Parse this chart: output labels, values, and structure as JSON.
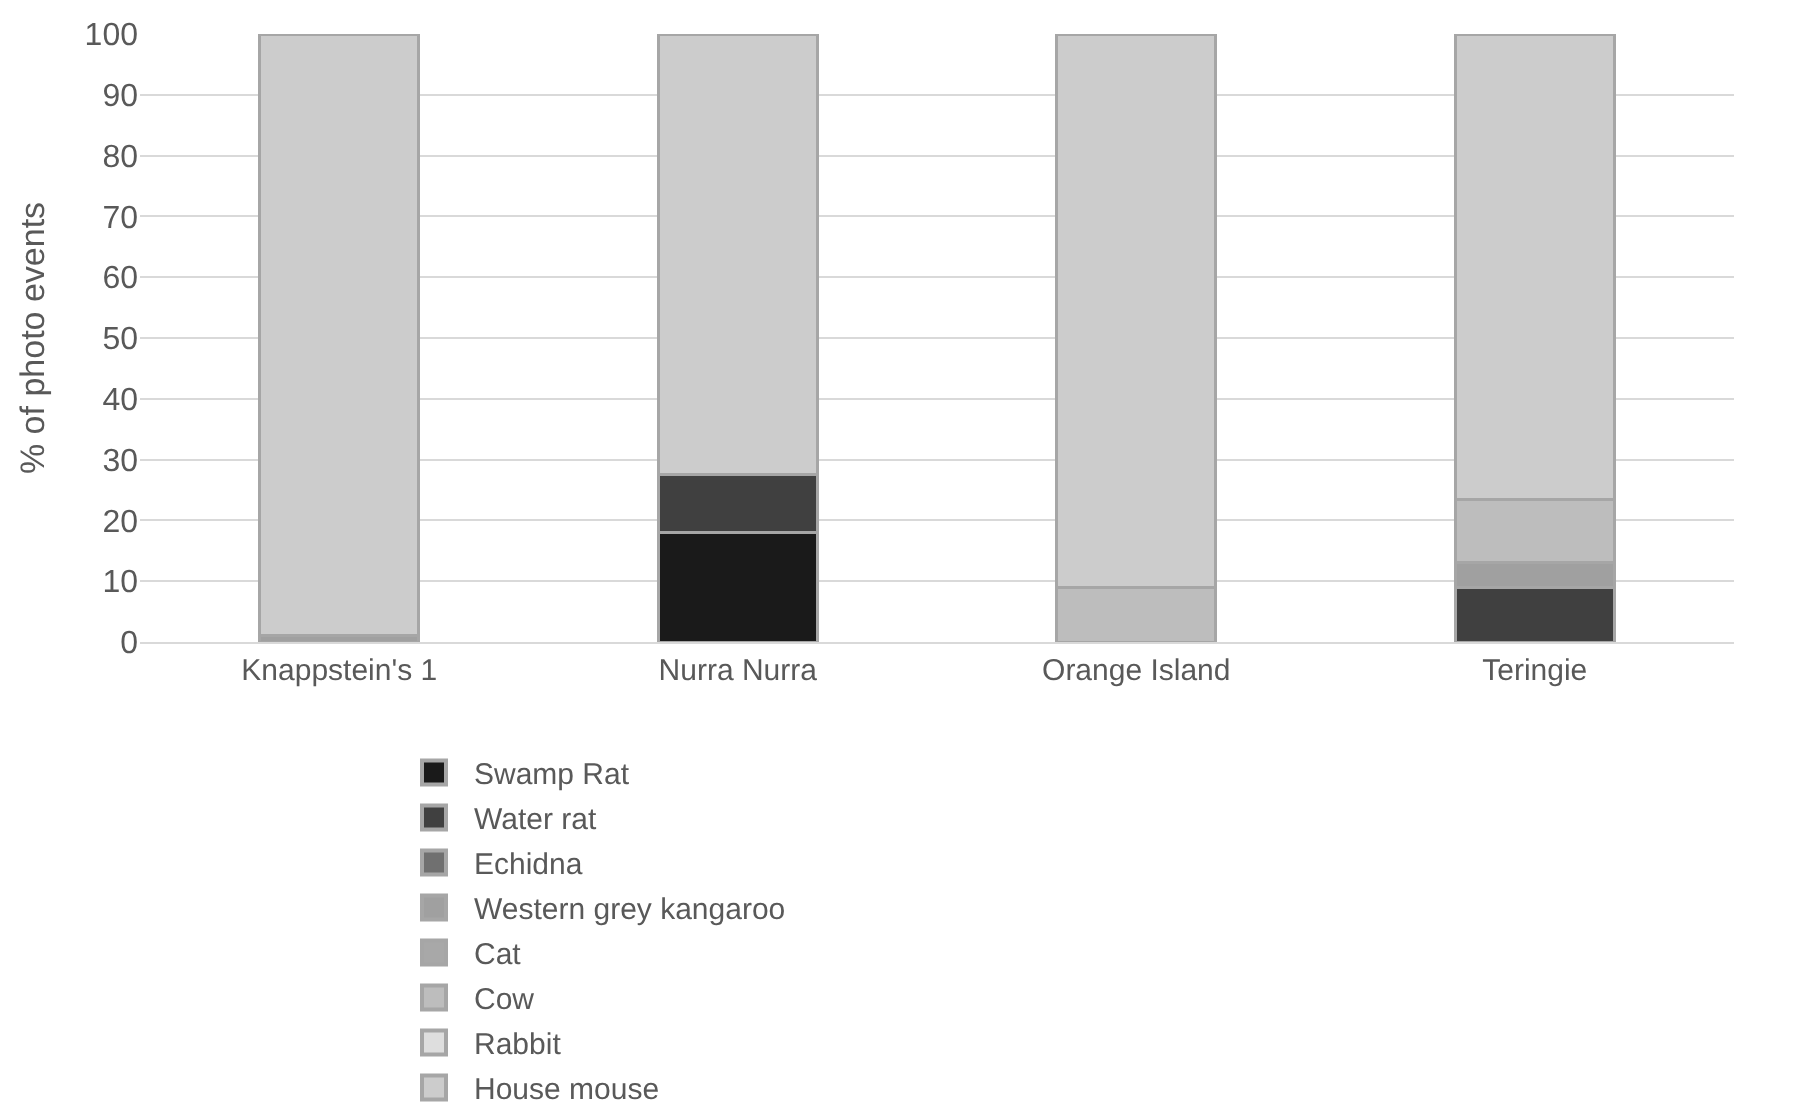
{
  "chart_data": {
    "type": "bar",
    "stacked": true,
    "ylabel": "% of photo events",
    "categories": [
      "Knappstein's 1",
      "Nurra Nurra",
      "Orange Island",
      "Teringie"
    ],
    "series": [
      {
        "name": "Swamp Rat",
        "color": "#1a1a1a",
        "values": [
          0,
          18,
          0,
          0
        ]
      },
      {
        "name": "Water rat",
        "color": "#404040",
        "values": [
          0,
          9.5,
          0,
          9
        ]
      },
      {
        "name": "Echidna",
        "color": "#707070",
        "values": [
          0,
          0,
          0,
          0
        ]
      },
      {
        "name": "Western grey kangaroo",
        "color": "#a0a0a0",
        "values": [
          1,
          0,
          0,
          4
        ]
      },
      {
        "name": "Cat",
        "color": "#a8a8a8",
        "values": [
          0,
          0,
          0,
          0
        ]
      },
      {
        "name": "Cow",
        "color": "#bdbdbd",
        "values": [
          0,
          0,
          9,
          10.5
        ]
      },
      {
        "name": "Rabbit",
        "color": "#dedede",
        "values": [
          0,
          0,
          0,
          0
        ]
      },
      {
        "name": "House mouse",
        "color": "#cccccc",
        "values": [
          99,
          72.5,
          91,
          76.5
        ]
      }
    ],
    "ylim": [
      0,
      100
    ],
    "yticks": [
      0,
      10,
      20,
      30,
      40,
      50,
      60,
      70,
      80,
      90,
      100
    ],
    "grid": "y",
    "legend": "bottom"
  }
}
